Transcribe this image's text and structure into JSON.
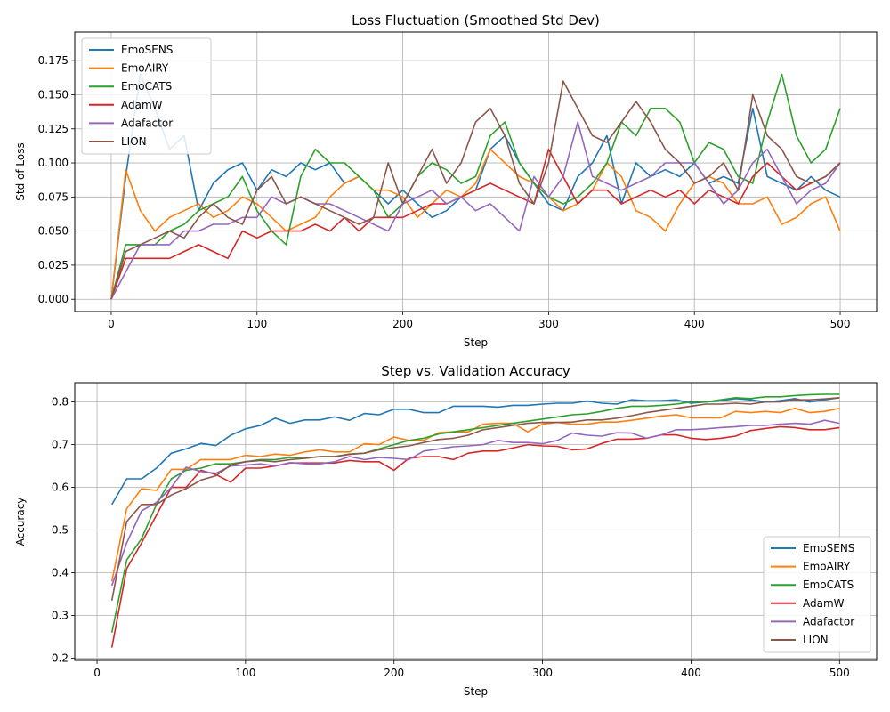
{
  "chart_data": [
    {
      "type": "line",
      "title": "Loss Fluctuation (Smoothed Std Dev)",
      "xlabel": "Step",
      "ylabel": "Std of Loss",
      "xlim": [
        -25,
        525
      ],
      "ylim": [
        -0.009,
        0.196
      ],
      "xticks": [
        0,
        100,
        200,
        300,
        400,
        500
      ],
      "yticks": [
        0.0,
        0.025,
        0.05,
        0.075,
        0.1,
        0.125,
        0.15,
        0.175
      ],
      "ytick_labels": [
        "0.000",
        "0.025",
        "0.050",
        "0.075",
        "0.100",
        "0.125",
        "0.150",
        "0.175"
      ],
      "grid": true,
      "legend": "top-left",
      "x_step": 10,
      "series": [
        {
          "name": "EmoSENS",
          "color": "#1f77b4",
          "values": [
            0.0,
            0.09,
            0.165,
            0.14,
            0.11,
            0.12,
            0.065,
            0.085,
            0.095,
            0.1,
            0.08,
            0.095,
            0.09,
            0.1,
            0.095,
            0.1,
            0.085,
            0.09,
            0.08,
            0.07,
            0.08,
            0.07,
            0.06,
            0.065,
            0.075,
            0.08,
            0.11,
            0.12,
            0.1,
            0.085,
            0.07,
            0.065,
            0.09,
            0.1,
            0.12,
            0.07,
            0.1,
            0.09,
            0.095,
            0.09,
            0.1,
            0.085,
            0.09,
            0.085,
            0.14,
            0.09,
            0.085,
            0.08,
            0.09,
            0.08,
            0.075
          ]
        },
        {
          "name": "EmoAIRY",
          "color": "#ff7f0e",
          "values": [
            0.0,
            0.095,
            0.065,
            0.05,
            0.06,
            0.065,
            0.07,
            0.06,
            0.065,
            0.075,
            0.07,
            0.06,
            0.05,
            0.055,
            0.06,
            0.075,
            0.085,
            0.09,
            0.08,
            0.08,
            0.075,
            0.06,
            0.07,
            0.08,
            0.075,
            0.085,
            0.11,
            0.1,
            0.09,
            0.085,
            0.075,
            0.065,
            0.07,
            0.08,
            0.1,
            0.09,
            0.065,
            0.06,
            0.05,
            0.07,
            0.085,
            0.09,
            0.085,
            0.07,
            0.07,
            0.075,
            0.055,
            0.06,
            0.07,
            0.075,
            0.05
          ]
        },
        {
          "name": "EmoCATS",
          "color": "#2ca02c",
          "values": [
            0.0,
            0.04,
            0.04,
            0.04,
            0.05,
            0.055,
            0.065,
            0.07,
            0.075,
            0.09,
            0.065,
            0.05,
            0.04,
            0.09,
            0.11,
            0.1,
            0.1,
            0.09,
            0.08,
            0.06,
            0.07,
            0.09,
            0.1,
            0.095,
            0.085,
            0.09,
            0.12,
            0.13,
            0.1,
            0.085,
            0.075,
            0.07,
            0.075,
            0.085,
            0.1,
            0.13,
            0.12,
            0.14,
            0.14,
            0.13,
            0.1,
            0.115,
            0.11,
            0.09,
            0.085,
            0.13,
            0.165,
            0.12,
            0.1,
            0.11,
            0.14
          ]
        },
        {
          "name": "AdamW",
          "color": "#d62728",
          "values": [
            0.0,
            0.03,
            0.03,
            0.03,
            0.03,
            0.035,
            0.04,
            0.035,
            0.03,
            0.05,
            0.045,
            0.05,
            0.05,
            0.05,
            0.055,
            0.05,
            0.06,
            0.05,
            0.06,
            0.06,
            0.06,
            0.065,
            0.07,
            0.07,
            0.075,
            0.08,
            0.085,
            0.08,
            0.075,
            0.07,
            0.11,
            0.09,
            0.07,
            0.08,
            0.08,
            0.07,
            0.075,
            0.08,
            0.075,
            0.08,
            0.07,
            0.08,
            0.075,
            0.07,
            0.09,
            0.1,
            0.09,
            0.08,
            0.085,
            0.09,
            0.1
          ]
        },
        {
          "name": "Adafactor",
          "color": "#9467bd",
          "values": [
            0.0,
            0.02,
            0.04,
            0.04,
            0.04,
            0.05,
            0.05,
            0.055,
            0.055,
            0.06,
            0.06,
            0.075,
            0.07,
            0.075,
            0.07,
            0.07,
            0.065,
            0.06,
            0.055,
            0.05,
            0.07,
            0.075,
            0.08,
            0.07,
            0.075,
            0.065,
            0.07,
            0.06,
            0.05,
            0.09,
            0.075,
            0.09,
            0.13,
            0.09,
            0.085,
            0.08,
            0.085,
            0.09,
            0.1,
            0.1,
            0.1,
            0.085,
            0.07,
            0.08,
            0.1,
            0.11,
            0.09,
            0.07,
            0.08,
            0.085,
            0.1
          ]
        },
        {
          "name": "LION",
          "color": "#8c564b",
          "values": [
            0.0,
            0.035,
            0.04,
            0.045,
            0.05,
            0.045,
            0.06,
            0.07,
            0.06,
            0.055,
            0.08,
            0.09,
            0.07,
            0.075,
            0.07,
            0.065,
            0.06,
            0.055,
            0.06,
            0.1,
            0.07,
            0.09,
            0.11,
            0.085,
            0.1,
            0.13,
            0.14,
            0.12,
            0.085,
            0.07,
            0.1,
            0.16,
            0.14,
            0.12,
            0.115,
            0.13,
            0.145,
            0.13,
            0.11,
            0.1,
            0.085,
            0.09,
            0.1,
            0.08,
            0.15,
            0.12,
            0.11,
            0.09,
            0.085,
            0.09,
            0.1
          ]
        }
      ]
    },
    {
      "type": "line",
      "title": "Step vs. Validation Accuracy",
      "xlabel": "Step",
      "ylabel": "Accuracy",
      "xlim": [
        -15,
        525
      ],
      "ylim": [
        0.195,
        0.845
      ],
      "xticks": [
        0,
        100,
        200,
        300,
        400,
        500
      ],
      "yticks": [
        0.2,
        0.3,
        0.4,
        0.5,
        0.6,
        0.7,
        0.8
      ],
      "ytick_labels": [
        "0.2",
        "0.3",
        "0.4",
        "0.5",
        "0.6",
        "0.7",
        "0.8"
      ],
      "grid": true,
      "legend": "lower-right",
      "x_start": 10,
      "x_step": 10,
      "series": [
        {
          "name": "EmoSENS",
          "color": "#1f77b4",
          "values": [
            0.56,
            0.62,
            0.62,
            0.645,
            0.68,
            0.69,
            0.703,
            0.698,
            0.722,
            0.737,
            0.745,
            0.762,
            0.75,
            0.758,
            0.758,
            0.765,
            0.757,
            0.773,
            0.77,
            0.783,
            0.783,
            0.775,
            0.775,
            0.79,
            0.79,
            0.79,
            0.788,
            0.792,
            0.792,
            0.795,
            0.797,
            0.797,
            0.802,
            0.797,
            0.795,
            0.805,
            0.803,
            0.803,
            0.805,
            0.797,
            0.8,
            0.803,
            0.808,
            0.805,
            0.8,
            0.803,
            0.808,
            0.8,
            0.805,
            0.81
          ]
        },
        {
          "name": "EmoAIRY",
          "color": "#ff7f0e",
          "values": [
            0.38,
            0.55,
            0.597,
            0.593,
            0.642,
            0.642,
            0.665,
            0.665,
            0.665,
            0.675,
            0.672,
            0.678,
            0.675,
            0.683,
            0.688,
            0.683,
            0.683,
            0.702,
            0.7,
            0.718,
            0.71,
            0.71,
            0.728,
            0.73,
            0.73,
            0.748,
            0.75,
            0.75,
            0.73,
            0.748,
            0.752,
            0.748,
            0.748,
            0.753,
            0.753,
            0.757,
            0.762,
            0.767,
            0.77,
            0.763,
            0.763,
            0.763,
            0.778,
            0.775,
            0.778,
            0.775,
            0.785,
            0.775,
            0.778,
            0.785
          ]
        },
        {
          "name": "EmoCATS",
          "color": "#2ca02c",
          "values": [
            0.26,
            0.43,
            0.48,
            0.56,
            0.62,
            0.64,
            0.645,
            0.655,
            0.655,
            0.66,
            0.665,
            0.665,
            0.67,
            0.668,
            0.672,
            0.672,
            0.678,
            0.68,
            0.69,
            0.7,
            0.71,
            0.715,
            0.725,
            0.73,
            0.735,
            0.74,
            0.745,
            0.75,
            0.755,
            0.76,
            0.765,
            0.77,
            0.772,
            0.778,
            0.785,
            0.79,
            0.79,
            0.792,
            0.795,
            0.8,
            0.8,
            0.805,
            0.81,
            0.808,
            0.812,
            0.812,
            0.815,
            0.817,
            0.818,
            0.818
          ]
        },
        {
          "name": "AdamW",
          "color": "#d62728",
          "values": [
            0.225,
            0.41,
            0.47,
            0.535,
            0.6,
            0.6,
            0.64,
            0.63,
            0.612,
            0.645,
            0.645,
            0.65,
            0.657,
            0.657,
            0.657,
            0.657,
            0.663,
            0.66,
            0.66,
            0.64,
            0.668,
            0.672,
            0.672,
            0.665,
            0.68,
            0.685,
            0.685,
            0.692,
            0.7,
            0.697,
            0.696,
            0.688,
            0.69,
            0.703,
            0.713,
            0.713,
            0.715,
            0.723,
            0.723,
            0.715,
            0.712,
            0.715,
            0.72,
            0.733,
            0.738,
            0.742,
            0.74,
            0.735,
            0.735,
            0.74
          ]
        },
        {
          "name": "Adafactor",
          "color": "#9467bd",
          "values": [
            0.37,
            0.47,
            0.545,
            0.565,
            0.6,
            0.647,
            0.637,
            0.633,
            0.65,
            0.652,
            0.655,
            0.65,
            0.658,
            0.655,
            0.655,
            0.66,
            0.672,
            0.665,
            0.67,
            0.668,
            0.665,
            0.685,
            0.69,
            0.695,
            0.697,
            0.7,
            0.71,
            0.705,
            0.705,
            0.702,
            0.71,
            0.727,
            0.722,
            0.72,
            0.728,
            0.727,
            0.715,
            0.723,
            0.735,
            0.735,
            0.737,
            0.74,
            0.742,
            0.745,
            0.745,
            0.748,
            0.75,
            0.748,
            0.757,
            0.75
          ]
        },
        {
          "name": "LION",
          "color": "#8c564b",
          "values": [
            0.335,
            0.52,
            0.56,
            0.56,
            0.582,
            0.597,
            0.617,
            0.627,
            0.652,
            0.66,
            0.663,
            0.66,
            0.665,
            0.668,
            0.672,
            0.672,
            0.677,
            0.68,
            0.688,
            0.693,
            0.697,
            0.705,
            0.712,
            0.715,
            0.722,
            0.735,
            0.74,
            0.745,
            0.75,
            0.752,
            0.752,
            0.753,
            0.758,
            0.758,
            0.762,
            0.768,
            0.775,
            0.78,
            0.785,
            0.79,
            0.795,
            0.795,
            0.797,
            0.795,
            0.8,
            0.8,
            0.805,
            0.805,
            0.807,
            0.81
          ]
        }
      ]
    }
  ]
}
